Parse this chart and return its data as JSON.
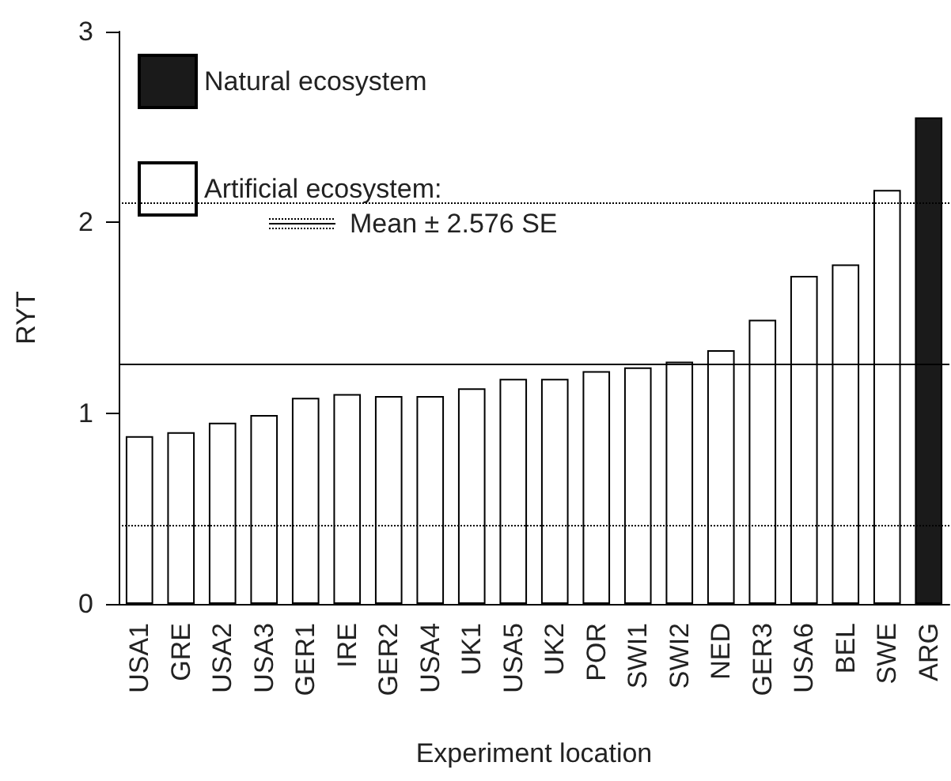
{
  "chart_data": {
    "type": "bar",
    "xlabel": "Experiment location",
    "ylabel": "RYT",
    "categories": [
      "USA1",
      "GRE",
      "USA2",
      "USA3",
      "GER1",
      "IRE",
      "GER2",
      "USA4",
      "UK1",
      "USA5",
      "UK2",
      "POR",
      "SWI1",
      "SWI2",
      "NED",
      "GER3",
      "USA6",
      "BEL",
      "SWE",
      "ARG"
    ],
    "series": [
      {
        "name": "Natural ecosystem",
        "color": "#1a1a1a",
        "values": [
          null,
          null,
          null,
          null,
          null,
          null,
          null,
          null,
          null,
          null,
          null,
          null,
          null,
          null,
          null,
          null,
          null,
          null,
          null,
          2.55
        ]
      },
      {
        "name": "Artificial ecosystem:",
        "color": "#ffffff",
        "values": [
          0.88,
          0.9,
          0.95,
          0.99,
          1.08,
          1.1,
          1.09,
          1.09,
          1.13,
          1.18,
          1.18,
          1.22,
          1.24,
          1.27,
          1.33,
          1.49,
          1.72,
          1.78,
          2.17,
          null
        ]
      }
    ],
    "ref_lines": [
      {
        "axis": "y",
        "value": 1.26,
        "line_style": "solid",
        "color": "#000000"
      },
      {
        "axis": "y",
        "value": 2.1,
        "line_style": "dotted",
        "color": "#000000"
      },
      {
        "axis": "y",
        "value": 0.41,
        "line_style": "dotted",
        "color": "#000000"
      }
    ],
    "annotations": [
      "Mean ± 2.576 SE"
    ],
    "ylim": [
      0,
      3
    ],
    "yticks": [
      0,
      1,
      2,
      3
    ],
    "grid": false,
    "legend": "top left"
  }
}
